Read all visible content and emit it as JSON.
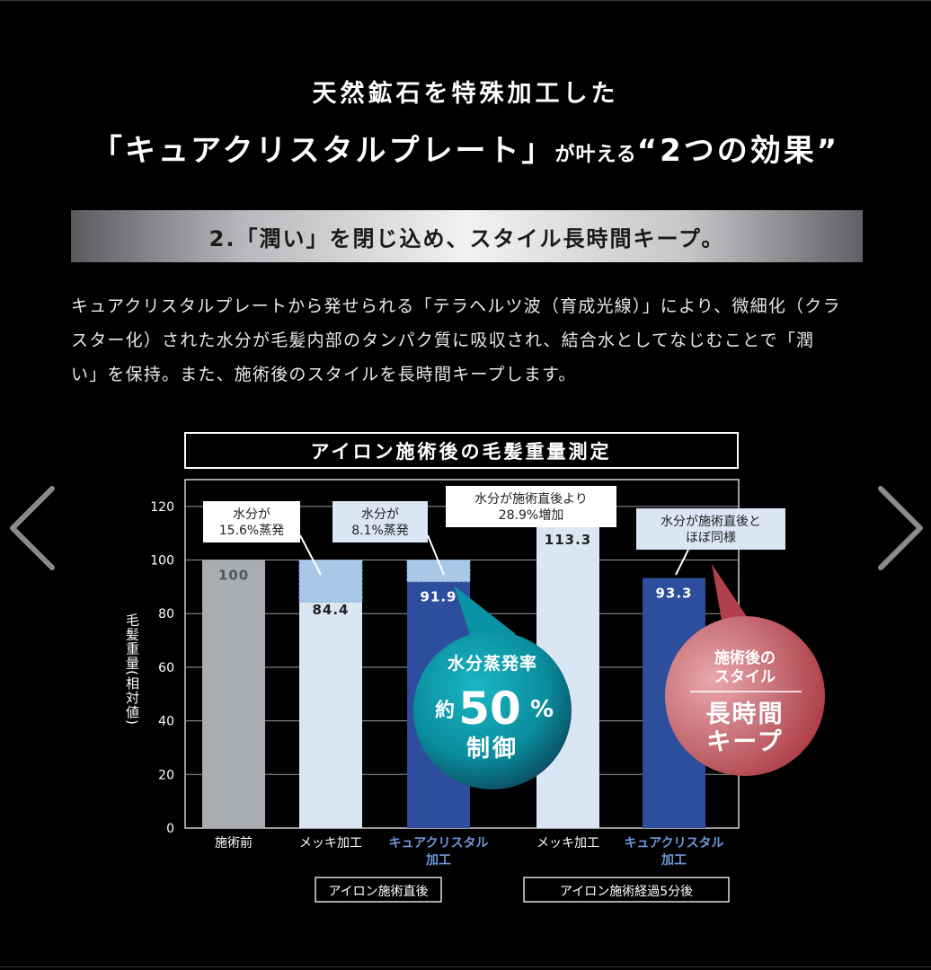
{
  "header": {
    "line1": "天然鉱石を特殊加工した",
    "line2_main": "「キュアクリスタルプレート」",
    "line2_small": "が叶える",
    "line2_end": "“2つの効果”"
  },
  "section": {
    "title": "2.「潤い」を閉じ込め、スタイル長時間キープ。",
    "body_lines": [
      "キュアクリスタルプレートから発せられる「テラヘルツ波（育成光線）」により、微細化（クラ",
      "スター化）された水分が毛髪内部のタンパク質に吸収され、結合水としてなじむことで「潤",
      "い」を保持。また、施術後のスタイルを長時間キープします。"
    ]
  },
  "nav": {
    "prev_icon": "chevron-left-icon",
    "next_icon": "chevron-right-icon"
  },
  "colors": {
    "gray_bar": "#a9adb2",
    "light_bar": "#dbe6f4",
    "blue_bar": "#2d4e9c",
    "evaporated": "#a9c8e8",
    "teal_badge": "#0a93a5",
    "red_badge": "#b0404b"
  },
  "chart_data": {
    "type": "bar",
    "title": "アイロン施術後の毛髪重量測定",
    "ylabel": "毛髪重量(相対値)",
    "ylim": [
      0,
      130
    ],
    "yticks": [
      0,
      20,
      40,
      60,
      80,
      100,
      120
    ],
    "grid": true,
    "categories": [
      "施術前",
      "メッキ加工",
      "キュアクリスタル加工",
      "メッキ加工",
      "キュアクリスタル加工"
    ],
    "category_display": [
      [
        "施術前"
      ],
      [
        "メッキ加工"
      ],
      [
        "キュアクリスタル",
        "加工"
      ],
      [
        "メッキ加工"
      ],
      [
        "キュアクリスタル",
        "加工"
      ]
    ],
    "values": [
      100,
      84.4,
      91.9,
      113.3,
      93.3
    ],
    "value_labels": [
      "100",
      "84.4",
      "91.9",
      "113.3",
      "93.3"
    ],
    "evaporated_to": [
      null,
      100,
      100,
      null,
      null
    ],
    "groups": [
      {
        "label": "アイロン施術直後",
        "categories": [
          1,
          2
        ]
      },
      {
        "label": "アイロン施術経過5分後",
        "categories": [
          3,
          4
        ]
      }
    ],
    "annotations": [
      {
        "bar": 1,
        "lines": [
          "水分が",
          "15.6%蒸発"
        ]
      },
      {
        "bar": 2,
        "lines": [
          "水分が",
          "8.1%蒸発"
        ]
      },
      {
        "bar": 3,
        "lines": [
          "水分が施術直後より",
          "28.9%増加"
        ]
      },
      {
        "bar": 4,
        "lines": [
          "水分が施術直後と",
          "ほぼ同様"
        ]
      }
    ],
    "badges": [
      {
        "bar": 2,
        "line1": "水分蒸発率",
        "prefix": "約",
        "big": "50",
        "suffix": "%",
        "line3": "制御"
      },
      {
        "bar": 4,
        "line1": "施術後の",
        "line2": "スタイル",
        "line3": "長時間",
        "line4": "キープ"
      }
    ]
  }
}
